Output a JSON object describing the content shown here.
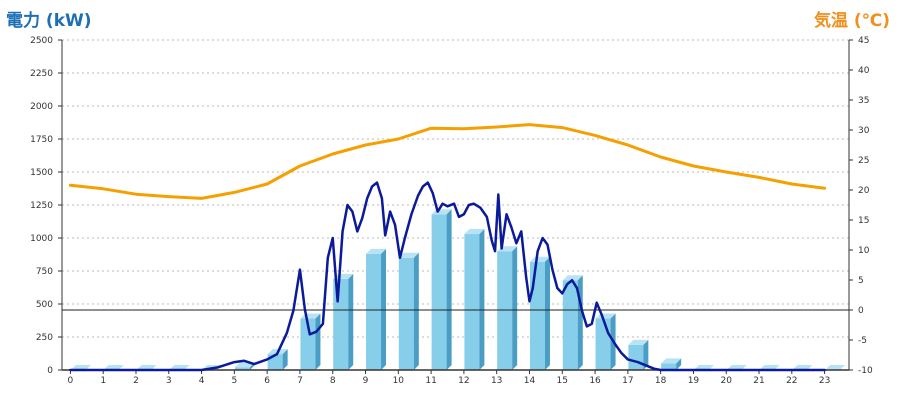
{
  "chart_data": {
    "type": "bar+line",
    "left_axis_title": "電力 (kW)",
    "right_axis_title": "気温 (℃)",
    "x_categories": [
      "0",
      "1",
      "2",
      "3",
      "4",
      "5",
      "6",
      "7",
      "8",
      "9",
      "10",
      "11",
      "12",
      "13",
      "14",
      "15",
      "16",
      "17",
      "18",
      "19",
      "20",
      "21",
      "22",
      "23"
    ],
    "left_ticks": [
      0,
      250,
      500,
      750,
      1000,
      1250,
      1500,
      1750,
      2000,
      2250,
      2500
    ],
    "right_ticks": [
      -10,
      -5,
      0,
      5,
      10,
      15,
      20,
      25,
      30,
      35,
      40,
      45
    ],
    "ylim_left": [
      0,
      2500
    ],
    "ylim_right": [
      -10,
      45
    ],
    "grid": true,
    "colors": {
      "bar": "#87ceeb",
      "bar_side": "#4a9ec4",
      "bar_top": "#b7e3f4",
      "power_line": "#0a1a9a",
      "temperature_line": "#f5a000",
      "grid": "#bbbbbb",
      "left_title": "#1f6fb5",
      "right_title": "#f0901e"
    },
    "hourly_power_bars_kW": [
      0,
      0,
      0,
      0,
      0,
      20,
      120,
      390,
      690,
      880,
      850,
      1180,
      1030,
      900,
      820,
      680,
      390,
      190,
      50,
      0,
      0,
      0,
      0,
      0
    ],
    "power_line_kW": [
      [
        0,
        0
      ],
      [
        1,
        0
      ],
      [
        2,
        0
      ],
      [
        3,
        0
      ],
      [
        4,
        0
      ],
      [
        4.5,
        20
      ],
      [
        5,
        60
      ],
      [
        5.3,
        70
      ],
      [
        5.6,
        45
      ],
      [
        6,
        80
      ],
      [
        6.3,
        120
      ],
      [
        6.6,
        280
      ],
      [
        6.8,
        450
      ],
      [
        7,
        760
      ],
      [
        7.15,
        460
      ],
      [
        7.3,
        270
      ],
      [
        7.5,
        290
      ],
      [
        7.7,
        350
      ],
      [
        7.85,
        850
      ],
      [
        8,
        1000
      ],
      [
        8.15,
        520
      ],
      [
        8.3,
        1050
      ],
      [
        8.45,
        1250
      ],
      [
        8.6,
        1200
      ],
      [
        8.75,
        1050
      ],
      [
        8.9,
        1150
      ],
      [
        9.05,
        1300
      ],
      [
        9.2,
        1390
      ],
      [
        9.35,
        1420
      ],
      [
        9.5,
        1300
      ],
      [
        9.6,
        1020
      ],
      [
        9.75,
        1200
      ],
      [
        9.9,
        1100
      ],
      [
        10.05,
        850
      ],
      [
        10.2,
        1000
      ],
      [
        10.4,
        1180
      ],
      [
        10.6,
        1320
      ],
      [
        10.75,
        1390
      ],
      [
        10.9,
        1420
      ],
      [
        11.05,
        1340
      ],
      [
        11.2,
        1200
      ],
      [
        11.35,
        1260
      ],
      [
        11.5,
        1240
      ],
      [
        11.7,
        1260
      ],
      [
        11.85,
        1160
      ],
      [
        12,
        1180
      ],
      [
        12.15,
        1250
      ],
      [
        12.3,
        1260
      ],
      [
        12.5,
        1230
      ],
      [
        12.7,
        1160
      ],
      [
        12.85,
        980
      ],
      [
        12.95,
        900
      ],
      [
        13.05,
        1330
      ],
      [
        13.15,
        920
      ],
      [
        13.3,
        1180
      ],
      [
        13.45,
        1080
      ],
      [
        13.6,
        960
      ],
      [
        13.75,
        1050
      ],
      [
        13.9,
        700
      ],
      [
        14,
        520
      ],
      [
        14.1,
        620
      ],
      [
        14.25,
        900
      ],
      [
        14.4,
        1000
      ],
      [
        14.55,
        950
      ],
      [
        14.7,
        760
      ],
      [
        14.85,
        620
      ],
      [
        15,
        580
      ],
      [
        15.15,
        650
      ],
      [
        15.3,
        680
      ],
      [
        15.45,
        620
      ],
      [
        15.6,
        450
      ],
      [
        15.75,
        330
      ],
      [
        15.9,
        350
      ],
      [
        16.05,
        510
      ],
      [
        16.2,
        420
      ],
      [
        16.4,
        280
      ],
      [
        16.6,
        200
      ],
      [
        16.8,
        130
      ],
      [
        17,
        80
      ],
      [
        17.3,
        60
      ],
      [
        17.6,
        30
      ],
      [
        17.8,
        10
      ],
      [
        18,
        0
      ],
      [
        19,
        0
      ],
      [
        20,
        0
      ],
      [
        21,
        0
      ],
      [
        22,
        0
      ],
      [
        23,
        0
      ]
    ],
    "temperature_C": [
      20.8,
      20.2,
      19.3,
      18.9,
      18.6,
      19.6,
      21.0,
      24.0,
      26.0,
      27.5,
      28.5,
      30.3,
      30.2,
      30.5,
      30.9,
      30.4,
      29.1,
      27.5,
      25.5,
      24.0,
      23.0,
      22.1,
      21.0,
      20.3
    ]
  }
}
